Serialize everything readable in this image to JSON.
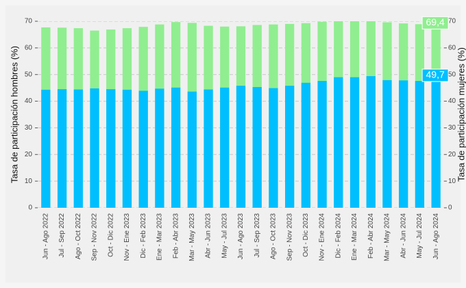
{
  "chart_data": {
    "type": "bar",
    "y_label": "Tasa de participación hombres (%)",
    "y2_label": "Tasa de participación mujeres (%)",
    "categories": [
      "Jun - Ago 2022",
      "Jul - Sep 2022",
      "Ago - Oct 2022",
      "Sep - Nov 2022",
      "Oct - Dic 2022",
      "Nov - Ene 2023",
      "Dic - Feb 2023",
      "Ene - Mar 2023",
      "Feb - Abr 2023",
      "Mar - May 2023",
      "Abr - Jun 2023",
      "May - Jul 2023",
      "Jun - Ago 2023",
      "Jul - Sep 2023",
      "Ago - Oct 2023",
      "Sep - Nov 2023",
      "Oct - Dic 2023",
      "Nov - Ene 2024",
      "Dic - Feb 2024",
      "Ene - Mar 2024",
      "Feb - Abr 2024",
      "Mar - May 2024",
      "Abr - Jun 2024",
      "May - Jul 2024",
      "Jun - Ago 2024"
    ],
    "series": [
      {
        "color": "#90ee90",
        "axis": "y",
        "values": [
          67.7,
          67.6,
          67.4,
          66.5,
          66.9,
          67.4,
          67.9,
          68.8,
          69.7,
          69.4,
          68.3,
          68.0,
          68.1,
          68.6,
          68.8,
          69.0,
          69.3,
          69.8,
          70.1,
          70.5,
          70.3,
          69.6,
          69.2,
          68.9,
          69.4
        ],
        "value_labels": [
          null,
          null,
          null,
          null,
          null,
          null,
          null,
          null,
          null,
          null,
          null,
          null,
          null,
          null,
          null,
          null,
          null,
          null,
          null,
          null,
          null,
          null,
          null,
          null,
          "69,4"
        ]
      },
      {
        "color": "#00bfff",
        "axis": "y2",
        "values": [
          44.3,
          44.5,
          44.4,
          44.8,
          44.5,
          44.3,
          43.9,
          44.7,
          45.1,
          43.6,
          44.4,
          45.1,
          45.8,
          45.3,
          44.9,
          45.8,
          46.9,
          47.6,
          49.0,
          49.0,
          49.4,
          47.9,
          47.8,
          47.6,
          49.7
        ],
        "value_labels": [
          null,
          null,
          null,
          null,
          null,
          null,
          null,
          null,
          null,
          null,
          null,
          null,
          null,
          null,
          null,
          null,
          null,
          null,
          null,
          null,
          null,
          null,
          null,
          null,
          "49,7"
        ]
      }
    ],
    "ylim": [
      0,
      70
    ],
    "yticks": [
      0,
      10,
      20,
      30,
      40,
      50,
      60,
      70
    ],
    "y2lim": [
      0,
      70
    ],
    "y2ticks": [
      0,
      10,
      20,
      30,
      40,
      50,
      60,
      70
    ],
    "grid": true
  }
}
